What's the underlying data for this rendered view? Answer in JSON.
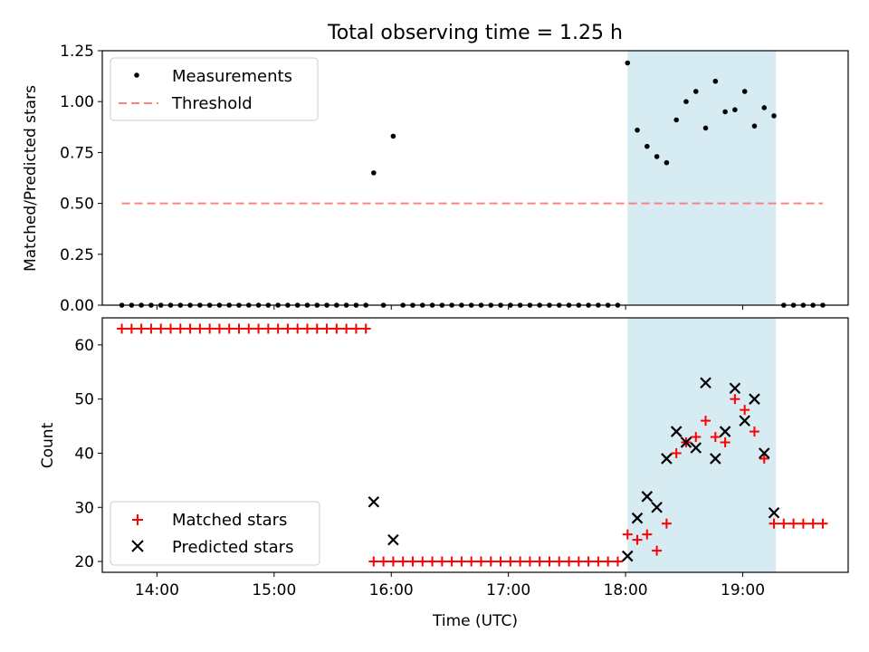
{
  "chart_data": {
    "title": "Total observing time = 1.25 h",
    "xlabel": "Time (UTC)",
    "xlim": [
      "13:32",
      "19:54"
    ],
    "xticks": [
      "14:00",
      "15:00",
      "16:00",
      "17:00",
      "18:00",
      "19:00"
    ],
    "shaded_interval": [
      "18:01",
      "19:17"
    ],
    "shade_color": "#add8e6",
    "panels": [
      {
        "type": "scatter",
        "ylabel": "Matched/Predicted stars",
        "ylim": [
          0,
          1.25
        ],
        "yticks": [
          "0.00",
          "0.25",
          "0.50",
          "0.75",
          "1.00",
          "1.25"
        ],
        "legend_position": "upper left",
        "series": [
          {
            "name": "Measurements",
            "marker": "dot",
            "color": "#000000",
            "points": [
              [
                "13:42",
                0
              ],
              [
                "13:47",
                0
              ],
              [
                "13:52",
                0
              ],
              [
                "13:57",
                0
              ],
              [
                "14:02",
                0
              ],
              [
                "14:07",
                0
              ],
              [
                "14:12",
                0
              ],
              [
                "14:17",
                0
              ],
              [
                "14:22",
                0
              ],
              [
                "14:27",
                0
              ],
              [
                "14:32",
                0
              ],
              [
                "14:37",
                0
              ],
              [
                "14:42",
                0
              ],
              [
                "14:47",
                0
              ],
              [
                "14:52",
                0
              ],
              [
                "14:57",
                0
              ],
              [
                "15:02",
                0
              ],
              [
                "15:07",
                0
              ],
              [
                "15:12",
                0
              ],
              [
                "15:17",
                0
              ],
              [
                "15:22",
                0
              ],
              [
                "15:27",
                0
              ],
              [
                "15:32",
                0
              ],
              [
                "15:37",
                0
              ],
              [
                "15:42",
                0
              ],
              [
                "15:47",
                0
              ],
              [
                "15:51",
                0.65
              ],
              [
                "15:56",
                0
              ],
              [
                "16:01",
                0.83
              ],
              [
                "16:06",
                0
              ],
              [
                "16:11",
                0
              ],
              [
                "16:16",
                0
              ],
              [
                "16:21",
                0
              ],
              [
                "16:26",
                0
              ],
              [
                "16:31",
                0
              ],
              [
                "16:36",
                0
              ],
              [
                "16:41",
                0
              ],
              [
                "16:46",
                0
              ],
              [
                "16:51",
                0
              ],
              [
                "16:56",
                0
              ],
              [
                "17:01",
                0
              ],
              [
                "17:06",
                0
              ],
              [
                "17:11",
                0
              ],
              [
                "17:16",
                0
              ],
              [
                "17:21",
                0
              ],
              [
                "17:26",
                0
              ],
              [
                "17:31",
                0
              ],
              [
                "17:36",
                0
              ],
              [
                "17:41",
                0
              ],
              [
                "17:46",
                0
              ],
              [
                "17:51",
                0
              ],
              [
                "17:56",
                0
              ],
              [
                "18:01",
                1.19
              ],
              [
                "18:06",
                0.86
              ],
              [
                "18:11",
                0.78
              ],
              [
                "18:16",
                0.73
              ],
              [
                "18:21",
                0.7
              ],
              [
                "18:26",
                0.91
              ],
              [
                "18:31",
                1.0
              ],
              [
                "18:36",
                1.05
              ],
              [
                "18:41",
                0.87
              ],
              [
                "18:46",
                1.1
              ],
              [
                "18:51",
                0.95
              ],
              [
                "18:56",
                0.96
              ],
              [
                "19:01",
                1.05
              ],
              [
                "19:06",
                0.88
              ],
              [
                "19:11",
                0.97
              ],
              [
                "19:16",
                0.93
              ],
              [
                "19:21",
                0
              ],
              [
                "19:26",
                0
              ],
              [
                "19:31",
                0
              ],
              [
                "19:36",
                0
              ],
              [
                "19:41",
                0
              ]
            ]
          },
          {
            "name": "Threshold",
            "marker": "dashed-line",
            "color": "#ff8080",
            "points": [
              [
                "13:42",
                0.5
              ],
              [
                "19:41",
                0.5
              ]
            ]
          }
        ]
      },
      {
        "type": "scatter",
        "ylabel": "Count",
        "ylim": [
          18,
          65
        ],
        "yticks": [
          "20",
          "30",
          "40",
          "50",
          "60"
        ],
        "legend_position": "lower left",
        "series": [
          {
            "name": "Matched stars",
            "marker": "plus",
            "color": "#ff0000",
            "points": [
              [
                "13:42",
                63
              ],
              [
                "13:47",
                63
              ],
              [
                "13:52",
                63
              ],
              [
                "13:57",
                63
              ],
              [
                "14:02",
                63
              ],
              [
                "14:07",
                63
              ],
              [
                "14:12",
                63
              ],
              [
                "14:17",
                63
              ],
              [
                "14:22",
                63
              ],
              [
                "14:27",
                63
              ],
              [
                "14:32",
                63
              ],
              [
                "14:37",
                63
              ],
              [
                "14:42",
                63
              ],
              [
                "14:47",
                63
              ],
              [
                "14:52",
                63
              ],
              [
                "14:57",
                63
              ],
              [
                "15:02",
                63
              ],
              [
                "15:07",
                63
              ],
              [
                "15:12",
                63
              ],
              [
                "15:17",
                63
              ],
              [
                "15:22",
                63
              ],
              [
                "15:27",
                63
              ],
              [
                "15:32",
                63
              ],
              [
                "15:37",
                63
              ],
              [
                "15:42",
                63
              ],
              [
                "15:47",
                63
              ],
              [
                "15:51",
                20
              ],
              [
                "15:56",
                20
              ],
              [
                "16:01",
                20
              ],
              [
                "16:06",
                20
              ],
              [
                "16:11",
                20
              ],
              [
                "16:16",
                20
              ],
              [
                "16:21",
                20
              ],
              [
                "16:26",
                20
              ],
              [
                "16:31",
                20
              ],
              [
                "16:36",
                20
              ],
              [
                "16:41",
                20
              ],
              [
                "16:46",
                20
              ],
              [
                "16:51",
                20
              ],
              [
                "16:56",
                20
              ],
              [
                "17:01",
                20
              ],
              [
                "17:06",
                20
              ],
              [
                "17:11",
                20
              ],
              [
                "17:16",
                20
              ],
              [
                "17:21",
                20
              ],
              [
                "17:26",
                20
              ],
              [
                "17:31",
                20
              ],
              [
                "17:36",
                20
              ],
              [
                "17:41",
                20
              ],
              [
                "17:46",
                20
              ],
              [
                "17:51",
                20
              ],
              [
                "17:56",
                20
              ],
              [
                "18:01",
                25
              ],
              [
                "18:06",
                24
              ],
              [
                "18:11",
                25
              ],
              [
                "18:16",
                22
              ],
              [
                "18:21",
                27
              ],
              [
                "18:26",
                40
              ],
              [
                "18:31",
                42
              ],
              [
                "18:36",
                43
              ],
              [
                "18:41",
                46
              ],
              [
                "18:46",
                43
              ],
              [
                "18:51",
                42
              ],
              [
                "18:56",
                50
              ],
              [
                "19:01",
                48
              ],
              [
                "19:06",
                44
              ],
              [
                "19:11",
                39
              ],
              [
                "19:16",
                27
              ],
              [
                "19:21",
                27
              ],
              [
                "19:26",
                27
              ],
              [
                "19:31",
                27
              ],
              [
                "19:36",
                27
              ],
              [
                "19:41",
                27
              ]
            ]
          },
          {
            "name": "Predicted stars",
            "marker": "x",
            "color": "#000000",
            "points": [
              [
                "15:51",
                31
              ],
              [
                "16:01",
                24
              ],
              [
                "18:01",
                21
              ],
              [
                "18:06",
                28
              ],
              [
                "18:11",
                32
              ],
              [
                "18:16",
                30
              ],
              [
                "18:21",
                39
              ],
              [
                "18:26",
                44
              ],
              [
                "18:31",
                42
              ],
              [
                "18:36",
                41
              ],
              [
                "18:41",
                53
              ],
              [
                "18:46",
                39
              ],
              [
                "18:51",
                44
              ],
              [
                "18:56",
                52
              ],
              [
                "19:01",
                46
              ],
              [
                "19:06",
                50
              ],
              [
                "19:11",
                40
              ],
              [
                "19:16",
                29
              ]
            ]
          }
        ]
      }
    ]
  }
}
